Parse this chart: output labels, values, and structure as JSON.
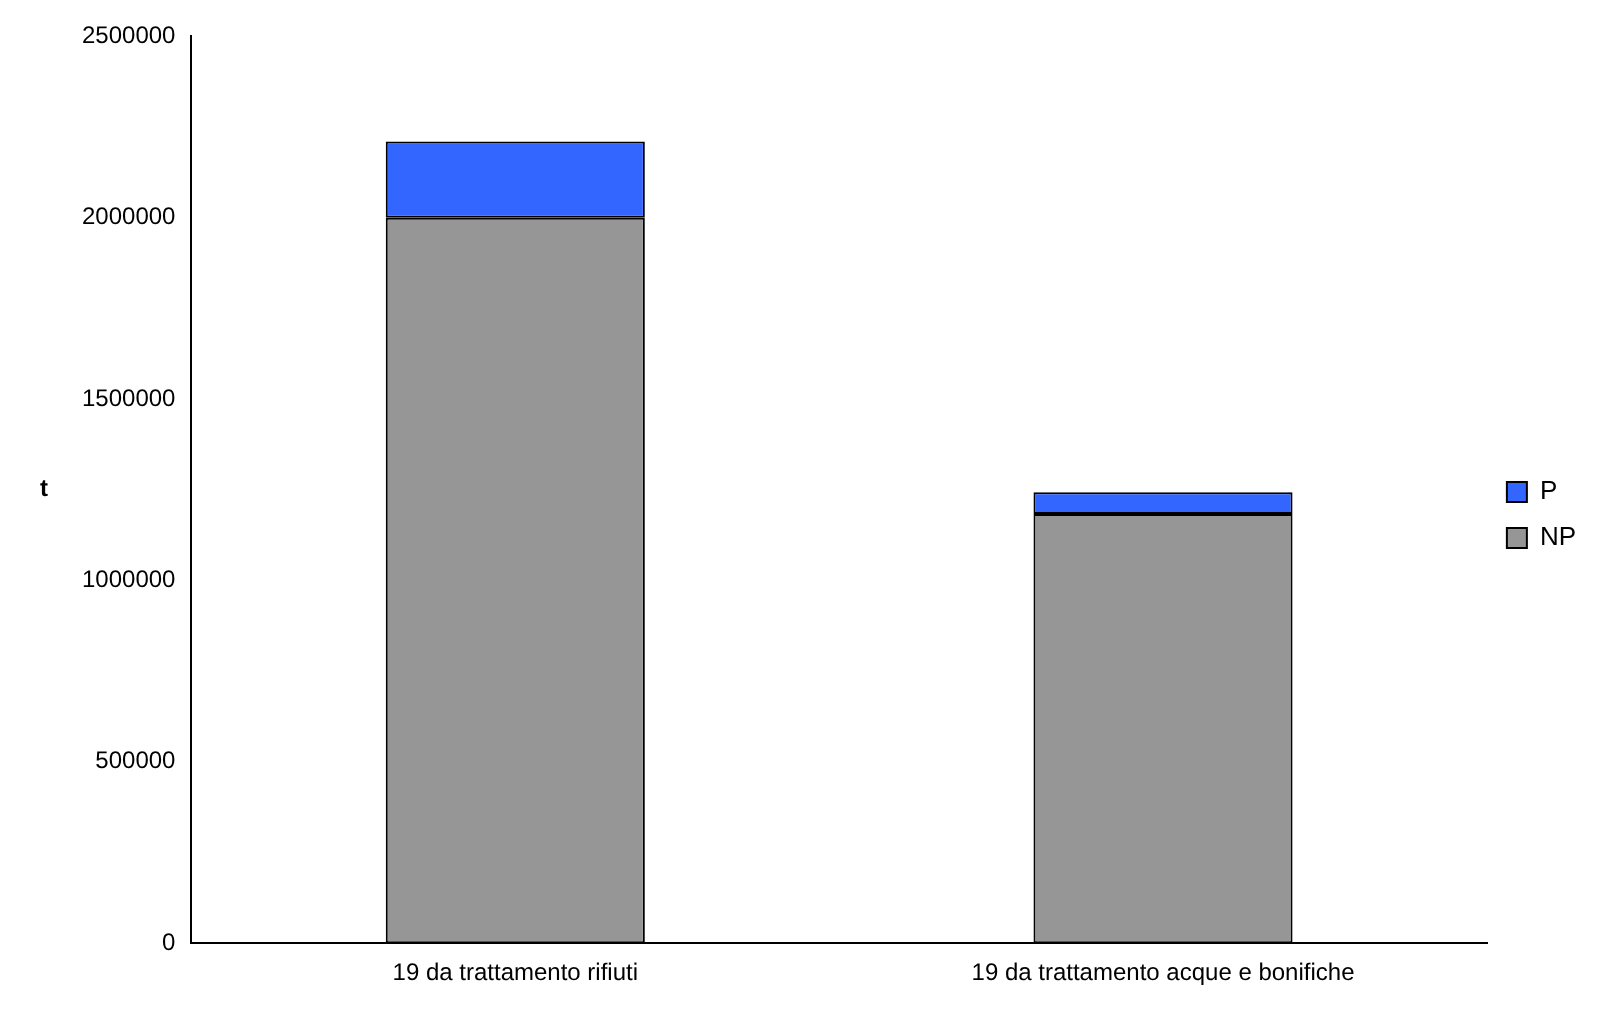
{
  "chart_data": {
    "type": "bar",
    "ylabel": "t",
    "categories": [
      "19 da trattamento rifiuti",
      "19 da trattamento acque e bonifiche"
    ],
    "stacked": true,
    "series": [
      {
        "name": "NP",
        "color": "#969696",
        "values": [
          2000000,
          1183000
        ]
      },
      {
        "name": "P",
        "color": "#3366ff",
        "values": [
          210000,
          60000
        ]
      }
    ],
    "ylim": [
      0,
      2500000
    ],
    "yticks": [
      0,
      500000,
      1000000,
      1500000,
      2000000,
      2500000
    ],
    "grid": false,
    "legend": "right"
  }
}
